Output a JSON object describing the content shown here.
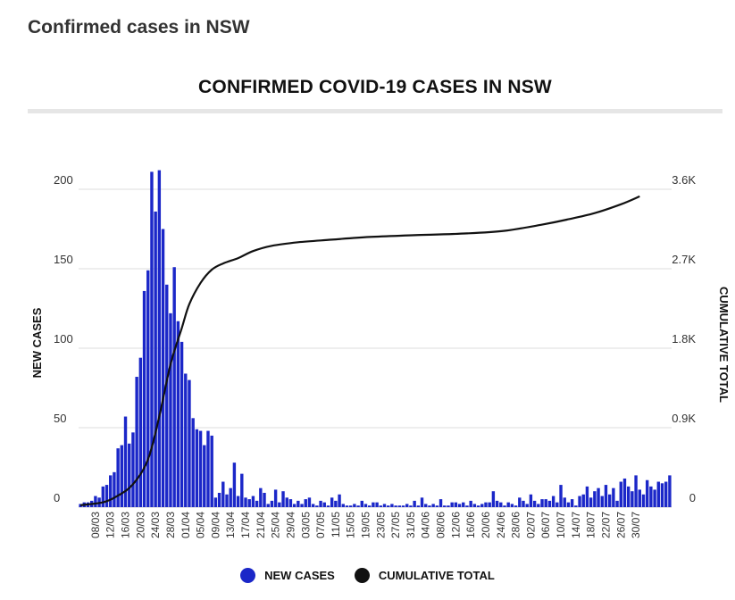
{
  "page": {
    "heading": "Confirmed cases in NSW"
  },
  "colors": {
    "bars": "#1b27c8",
    "line": "#111111",
    "grid": "#dddddd"
  },
  "chart_data": {
    "type": "bar+line",
    "title": "CONFIRMED COVID-19 CASES IN NSW",
    "ylabel_left": "NEW CASES",
    "ylabel_right": "CUMULATIVE TOTAL",
    "ylim_left": [
      0,
      200
    ],
    "ylim_right": [
      0,
      3600
    ],
    "left_ticks": [
      {
        "value": 0,
        "label": "0"
      },
      {
        "value": 50,
        "label": "50"
      },
      {
        "value": 100,
        "label": "100"
      },
      {
        "value": 150,
        "label": "150"
      },
      {
        "value": 200,
        "label": "200"
      }
    ],
    "right_ticks": [
      {
        "value": 0,
        "label": "0"
      },
      {
        "value": 900,
        "label": "0.9K"
      },
      {
        "value": 1800,
        "label": "1.8K"
      },
      {
        "value": 2700,
        "label": "2.7K"
      },
      {
        "value": 3600,
        "label": "3.6K"
      }
    ],
    "start_date": "2020-03-04",
    "x_tick_labels": [
      "08/03",
      "12/03",
      "16/03",
      "20/03",
      "24/03",
      "28/03",
      "01/04",
      "05/04",
      "09/04",
      "13/04",
      "17/04",
      "21/04",
      "25/04",
      "29/04",
      "03/05",
      "07/05",
      "11/05",
      "15/05",
      "19/05",
      "23/05",
      "27/05",
      "31/05",
      "04/06",
      "08/06",
      "12/06",
      "16/06",
      "20/06",
      "24/06",
      "28/06",
      "02/07",
      "06/07",
      "10/07",
      "14/07",
      "18/07",
      "22/07",
      "26/07",
      "30/07"
    ],
    "legend": [
      {
        "label": "NEW CASES",
        "color": "#1b27c8"
      },
      {
        "label": "CUMULATIVE TOTAL",
        "color": "#111111"
      }
    ],
    "series": [
      {
        "name": "NEW CASES",
        "type": "bar",
        "axis": "left",
        "values": [
          2,
          3,
          3,
          4,
          7,
          6,
          13,
          14,
          20,
          22,
          37,
          39,
          57,
          40,
          47,
          82,
          94,
          136,
          149,
          211,
          186,
          212,
          175,
          140,
          122,
          151,
          117,
          104,
          84,
          80,
          56,
          49,
          48,
          39,
          48,
          45,
          6,
          9,
          16,
          8,
          12,
          28,
          7,
          21,
          6,
          5,
          7,
          4,
          12,
          9,
          2,
          4,
          11,
          3,
          10,
          6,
          5,
          2,
          4,
          2,
          5,
          6,
          2,
          1,
          4,
          3,
          1,
          6,
          4,
          8,
          2,
          1,
          1,
          2,
          1,
          4,
          2,
          1,
          3,
          3,
          1,
          2,
          1,
          2,
          1,
          1,
          1,
          2,
          1,
          4,
          1,
          6,
          2,
          1,
          2,
          1,
          5,
          1,
          1,
          3,
          3,
          2,
          3,
          1,
          4,
          2,
          1,
          2,
          3,
          3,
          10,
          4,
          3,
          1,
          3,
          2,
          1,
          6,
          4,
          2,
          8,
          4,
          2,
          5,
          5,
          4,
          7,
          3,
          14,
          6,
          3,
          5,
          1,
          7,
          8,
          13,
          6,
          10,
          12,
          7,
          14,
          8,
          12,
          4,
          16,
          18,
          13,
          10,
          20,
          11,
          8,
          17,
          13,
          11,
          16,
          15,
          16,
          20
        ],
        "note_peaks": "highest daily values read at approx 211-212"
      },
      {
        "name": "CUMULATIVE TOTAL",
        "type": "line",
        "axis": "right",
        "anchor_points": [
          {
            "date": "2020-03-04",
            "value": 22
          },
          {
            "date": "2020-03-10",
            "value": 55
          },
          {
            "date": "2020-03-14",
            "value": 130
          },
          {
            "date": "2020-03-18",
            "value": 260
          },
          {
            "date": "2020-03-22",
            "value": 540
          },
          {
            "date": "2020-03-25",
            "value": 1030
          },
          {
            "date": "2020-03-28",
            "value": 1620
          },
          {
            "date": "2020-03-31",
            "value": 2030
          },
          {
            "date": "2020-04-02",
            "value": 2300
          },
          {
            "date": "2020-04-05",
            "value": 2540
          },
          {
            "date": "2020-04-08",
            "value": 2690
          },
          {
            "date": "2020-04-11",
            "value": 2760
          },
          {
            "date": "2020-04-15",
            "value": 2820
          },
          {
            "date": "2020-04-19",
            "value": 2900
          },
          {
            "date": "2020-04-24",
            "value": 2960
          },
          {
            "date": "2020-05-01",
            "value": 3000
          },
          {
            "date": "2020-05-10",
            "value": 3030
          },
          {
            "date": "2020-05-20",
            "value": 3060
          },
          {
            "date": "2020-06-01",
            "value": 3080
          },
          {
            "date": "2020-06-15",
            "value": 3100
          },
          {
            "date": "2020-06-25",
            "value": 3130
          },
          {
            "date": "2020-07-05",
            "value": 3200
          },
          {
            "date": "2020-07-12",
            "value": 3260
          },
          {
            "date": "2020-07-19",
            "value": 3330
          },
          {
            "date": "2020-07-26",
            "value": 3430
          },
          {
            "date": "2020-07-31",
            "value": 3520
          }
        ]
      }
    ],
    "grid": true
  }
}
